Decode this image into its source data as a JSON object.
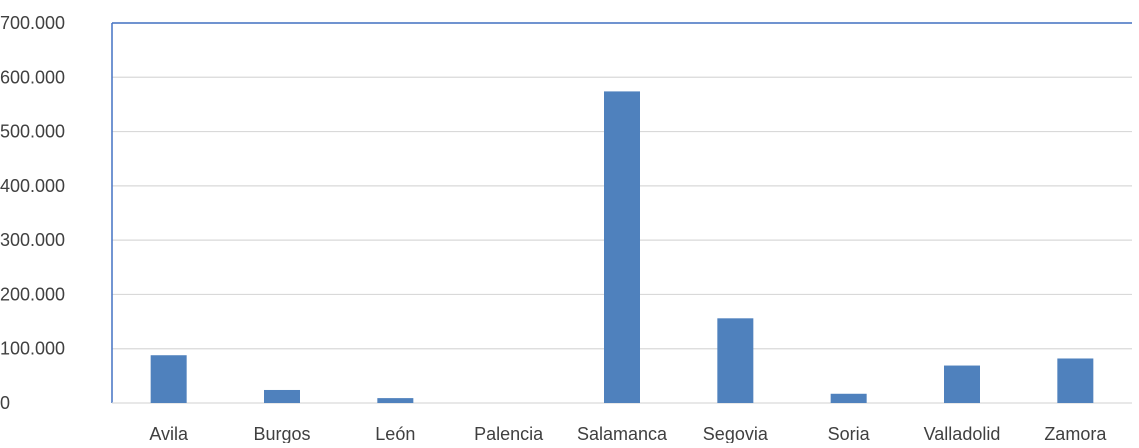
{
  "chart_data": {
    "type": "bar",
    "title": "",
    "xlabel": "",
    "ylabel": "",
    "categories": [
      "Avila",
      "Burgos",
      "León",
      "Palencia",
      "Salamanca",
      "Segovia",
      "Soria",
      "Valladolid",
      "Zamora"
    ],
    "values": [
      88000,
      24000,
      9000,
      0,
      574000,
      156000,
      17000,
      69000,
      82000
    ],
    "ylim": [
      0,
      700000
    ],
    "yticks": [
      "0",
      "100.000",
      "200.000",
      "300.000",
      "400.000",
      "500.000",
      "600.000",
      "700.000"
    ],
    "grid": true,
    "legend": "none",
    "colors": {
      "bar": "#4f81bd",
      "grid": "#d9d9d9",
      "axis": "#4472c4",
      "text": "#404040"
    }
  }
}
